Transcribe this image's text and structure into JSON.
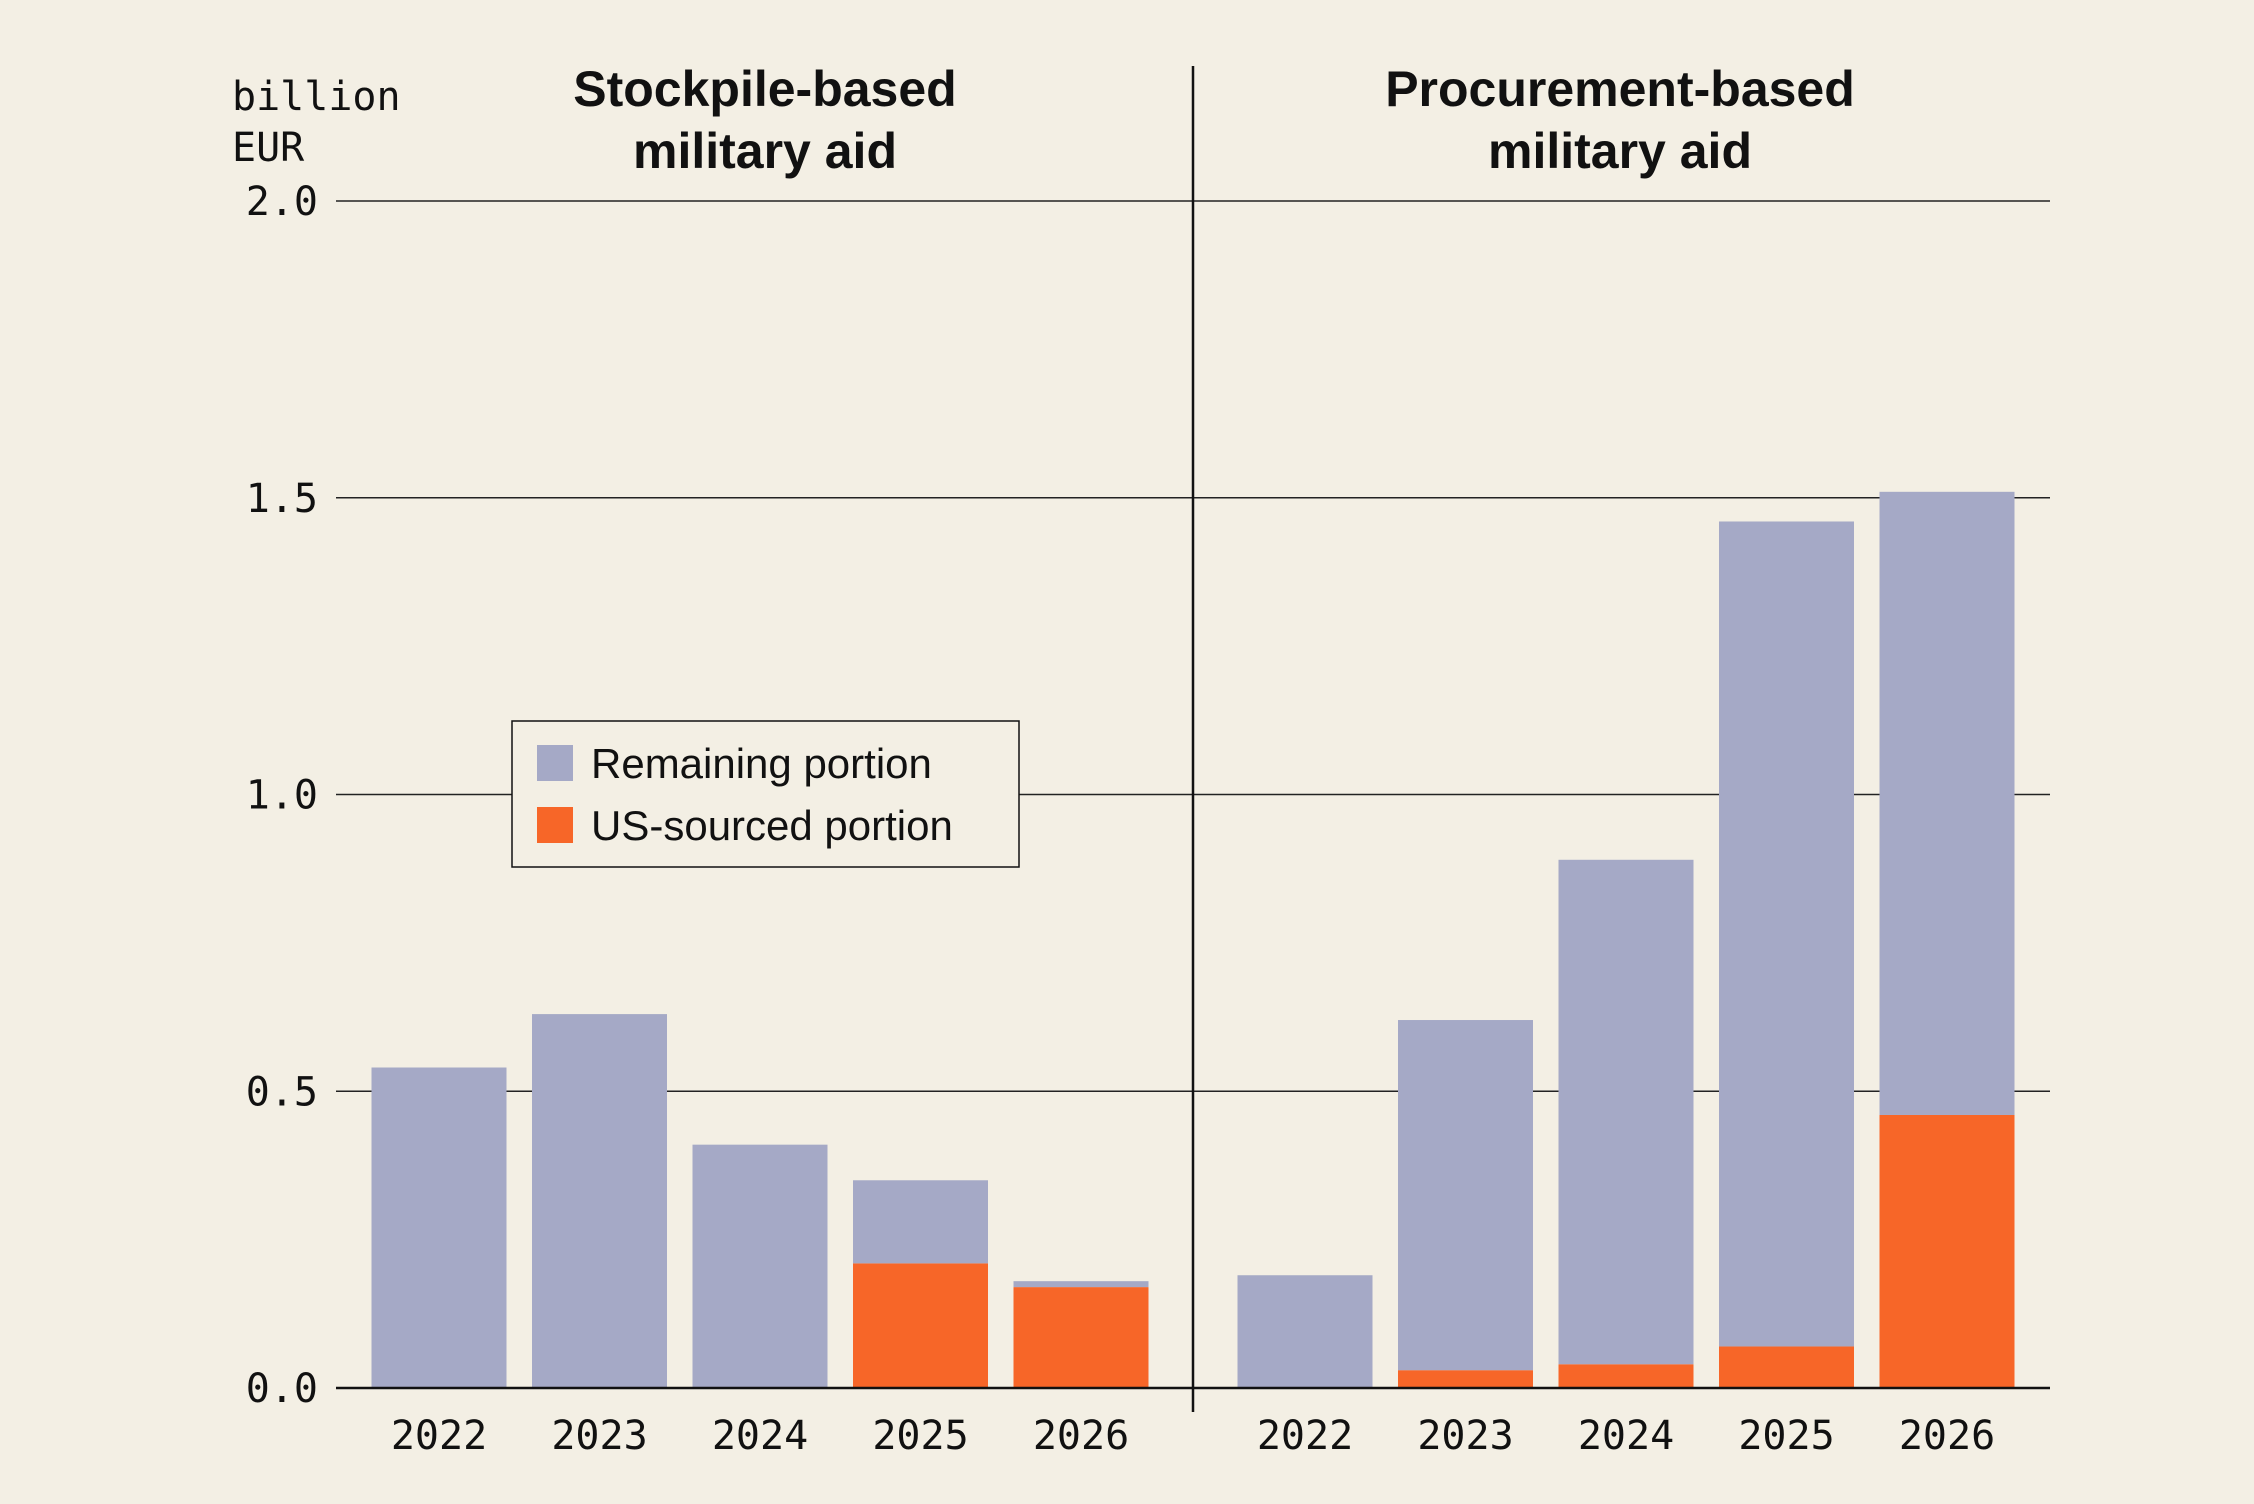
{
  "chart_data": {
    "type": "bar",
    "stacked": true,
    "unit_label": [
      "billion",
      "EUR"
    ],
    "y_ticks": [
      "0.0",
      "0.5",
      "1.0",
      "1.5",
      "2.0"
    ],
    "ylim": [
      0,
      2.0
    ],
    "grid": true,
    "legend": {
      "placement": "center-left",
      "entries": [
        {
          "label": "Remaining portion",
          "color": "#a5a9c6"
        },
        {
          "label": "US-sourced portion",
          "color": "#f76628"
        }
      ]
    },
    "panels": [
      {
        "title": [
          "Stockpile-based",
          "military aid"
        ],
        "categories": [
          "2022",
          "2023",
          "2024",
          "2025",
          "2026"
        ],
        "series": [
          {
            "name": "US-sourced portion",
            "values": [
              0,
              0,
              0,
              0.21,
              0.17
            ]
          },
          {
            "name": "Remaining portion",
            "values": [
              0.54,
              0.63,
              0.41,
              0.14,
              0.01
            ]
          }
        ]
      },
      {
        "title": [
          "Procurement-based",
          "military aid"
        ],
        "categories": [
          "2022",
          "2023",
          "2024",
          "2025",
          "2026"
        ],
        "series": [
          {
            "name": "US-sourced portion",
            "values": [
              0,
              0.03,
              0.04,
              0.07,
              0.46
            ]
          },
          {
            "name": "Remaining portion",
            "values": [
              0.19,
              0.59,
              0.85,
              1.39,
              1.05
            ]
          }
        ]
      }
    ]
  }
}
